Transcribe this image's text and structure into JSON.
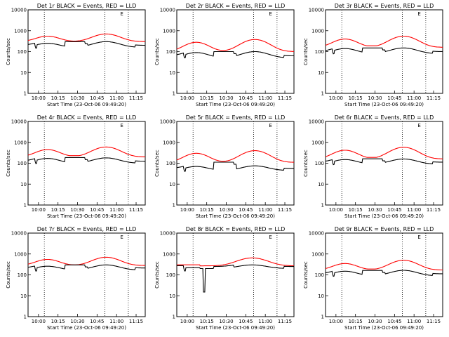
{
  "chart_data": [
    {
      "type": "line",
      "title": "Det 1r BLACK = Events, RED = LLD",
      "xlabel": "Start Time (23-Oct-06 09:49:20)",
      "ylabel": "Counts/sec",
      "yscale": "log",
      "ylim": [
        1,
        10000
      ],
      "xlim": [
        0,
        90
      ],
      "xticks": [
        "10:00",
        "10:15",
        "10:30",
        "10:45",
        "11:00",
        "11:15"
      ],
      "yticks": [
        "1",
        "10",
        "100",
        "1000",
        "10000"
      ],
      "markers": [
        {
          "label": "E",
          "x": 72
        }
      ],
      "vlines": [
        12.5,
        59,
        77
      ],
      "series": [
        {
          "color": "#ff0000",
          "profile": "a",
          "base": 300,
          "peak1": 550,
          "peak2": 700,
          "dip": 300
        },
        {
          "color": "#000000",
          "profile": "a",
          "base": 160,
          "peak1": 250,
          "peak2": 300,
          "dip": 240
        }
      ]
    },
    {
      "type": "line",
      "title": "Det 2r BLACK = Events, RED = LLD",
      "xlabel": "Start Time (23-Oct-06 09:49:20)",
      "ylabel": "Counts/sec",
      "yscale": "log",
      "ylim": [
        1,
        10000
      ],
      "xlim": [
        0,
        90
      ],
      "xticks": [
        "10:00",
        "10:15",
        "10:30",
        "10:45",
        "11:00",
        "11:15"
      ],
      "yticks": [
        "1",
        "10",
        "100",
        "1000",
        "10000"
      ],
      "markers": [
        {
          "label": "E",
          "x": 72
        }
      ],
      "vlines": [
        12.5,
        59,
        77
      ],
      "series": [
        {
          "color": "#ff0000",
          "profile": "a",
          "base": 100,
          "peak1": 280,
          "peak2": 380,
          "dip": 110
        },
        {
          "color": "#000000",
          "profile": "a",
          "base": 50,
          "peak1": 90,
          "peak2": 100,
          "dip": 80
        }
      ]
    },
    {
      "type": "line",
      "title": "Det 3r BLACK = Events, RED = LLD",
      "xlabel": "Start Time (23-Oct-06 09:49:20)",
      "ylabel": "Counts/sec",
      "yscale": "log",
      "ylim": [
        1,
        10000
      ],
      "xlim": [
        0,
        90
      ],
      "xticks": [
        "10:00",
        "10:15",
        "10:30",
        "10:45",
        "11:00",
        "11:15"
      ],
      "yticks": [
        "1",
        "10",
        "100",
        "1000",
        "10000"
      ],
      "markers": [
        {
          "label": "E",
          "x": 72
        }
      ],
      "vlines": [
        12.5,
        59,
        77
      ],
      "series": [
        {
          "color": "#ff0000",
          "profile": "a",
          "base": 160,
          "peak1": 400,
          "peak2": 550,
          "dip": 190
        },
        {
          "color": "#000000",
          "profile": "a",
          "base": 80,
          "peak1": 140,
          "peak2": 150,
          "dip": 120
        }
      ]
    },
    {
      "type": "line",
      "title": "Det 4r BLACK = Events, RED = LLD",
      "xlabel": "Start Time (23-Oct-06 09:49:20)",
      "ylabel": "Counts/sec",
      "yscale": "log",
      "ylim": [
        1,
        10000
      ],
      "xlim": [
        0,
        90
      ],
      "xticks": [
        "10:00",
        "10:15",
        "10:30",
        "10:45",
        "11:00",
        "11:15"
      ],
      "yticks": [
        "1",
        "10",
        "100",
        "1000",
        "10000"
      ],
      "markers": [
        {
          "label": "E",
          "x": 72
        }
      ],
      "vlines": [
        12.5,
        59,
        77
      ],
      "series": [
        {
          "color": "#ff0000",
          "profile": "a",
          "base": 200,
          "peak1": 450,
          "peak2": 600,
          "dip": 230
        },
        {
          "color": "#000000",
          "profile": "a",
          "base": 100,
          "peak1": 170,
          "peak2": 180,
          "dip": 150
        }
      ]
    },
    {
      "type": "line",
      "title": "Det 5r BLACK = Events, RED = LLD",
      "xlabel": "Start Time (23-Oct-06 09:49:20)",
      "ylabel": "Counts/sec",
      "yscale": "log",
      "ylim": [
        1,
        10000
      ],
      "xlim": [
        0,
        90
      ],
      "xticks": [
        "10:00",
        "10:15",
        "10:30",
        "10:45",
        "11:00",
        "11:15"
      ],
      "yticks": [
        "1",
        "10",
        "100",
        "1000",
        "10000"
      ],
      "markers": [
        {
          "label": "E",
          "x": 72
        }
      ],
      "vlines": [
        12.5,
        59,
        77
      ],
      "series": [
        {
          "color": "#ff0000",
          "profile": "a",
          "base": 110,
          "peak1": 300,
          "peak2": 400,
          "dip": 120
        },
        {
          "color": "#000000",
          "profile": "a",
          "base": 45,
          "peak1": 70,
          "peak2": 75,
          "dip": 90
        }
      ]
    },
    {
      "type": "line",
      "title": "Det 6r BLACK = Events, RED = LLD",
      "xlabel": "Start Time (23-Oct-06 09:49:20)",
      "ylabel": "Counts/sec",
      "yscale": "log",
      "ylim": [
        1,
        10000
      ],
      "xlim": [
        0,
        90
      ],
      "xticks": [
        "10:00",
        "10:15",
        "10:30",
        "10:45",
        "11:00",
        "11:15"
      ],
      "yticks": [
        "1",
        "10",
        "100",
        "1000",
        "10000"
      ],
      "markers": [
        {
          "label": "E",
          "x": 72
        }
      ],
      "vlines": [
        12.5,
        59,
        77
      ],
      "series": [
        {
          "color": "#ff0000",
          "profile": "a",
          "base": 160,
          "peak1": 420,
          "peak2": 580,
          "dip": 190
        },
        {
          "color": "#000000",
          "profile": "a",
          "base": 90,
          "peak1": 150,
          "peak2": 160,
          "dip": 130
        }
      ]
    },
    {
      "type": "line",
      "title": "Det 7r BLACK = Events, RED = LLD",
      "xlabel": "Start Time (23-Oct-06 09:49:20)",
      "ylabel": "Counts/sec",
      "yscale": "log",
      "ylim": [
        1,
        10000
      ],
      "xlim": [
        0,
        90
      ],
      "xticks": [
        "10:00",
        "10:15",
        "10:30",
        "10:45",
        "11:00",
        "11:15"
      ],
      "yticks": [
        "1",
        "10",
        "100",
        "1000",
        "10000"
      ],
      "markers": [
        {
          "label": "E",
          "x": 72
        }
      ],
      "vlines": [
        12.5,
        59,
        77
      ],
      "series": [
        {
          "color": "#ff0000",
          "profile": "a",
          "base": 280,
          "peak1": 550,
          "peak2": 700,
          "dip": 290
        },
        {
          "color": "#000000",
          "profile": "a",
          "base": 170,
          "peak1": 260,
          "peak2": 300,
          "dip": 240
        }
      ]
    },
    {
      "type": "line",
      "title": "Det 8r BLACK = Events, RED = LLD",
      "xlabel": "Start Time (23-Oct-06 09:49:20)",
      "ylabel": "Counts/sec",
      "yscale": "log",
      "ylim": [
        1,
        10000
      ],
      "xlim": [
        0,
        90
      ],
      "xticks": [
        "10:00",
        "10:15",
        "10:30",
        "10:45",
        "11:00",
        "11:15"
      ],
      "yticks": [
        "1",
        "10",
        "100",
        "1000",
        "10000"
      ],
      "markers": [
        {
          "label": "E",
          "x": 72
        }
      ],
      "vlines": [
        12.5,
        59,
        77
      ],
      "series": [
        {
          "color": "#ff0000",
          "profile": "b",
          "base": 270,
          "peak1": 400,
          "peak2": 650,
          "dip": 280
        },
        {
          "color": "#000000",
          "profile": "b",
          "base": 200,
          "peak1": 280,
          "peak2": 300,
          "dip": 230
        }
      ]
    },
    {
      "type": "line",
      "title": "Det 9r BLACK = Events, RED = LLD",
      "xlabel": "Start Time (23-Oct-06 09:49:20)",
      "ylabel": "Counts/sec",
      "yscale": "log",
      "ylim": [
        1,
        10000
      ],
      "xlim": [
        0,
        90
      ],
      "xticks": [
        "10:00",
        "10:15",
        "10:30",
        "10:45",
        "11:00",
        "11:15"
      ],
      "yticks": [
        "1",
        "10",
        "100",
        "1000",
        "10000"
      ],
      "markers": [
        {
          "label": "E",
          "x": 72
        }
      ],
      "vlines": [
        12.5,
        59,
        77
      ],
      "series": [
        {
          "color": "#ff0000",
          "profile": "a",
          "base": 170,
          "peak1": 350,
          "peak2": 500,
          "dip": 190
        },
        {
          "color": "#000000",
          "profile": "a",
          "base": 90,
          "peak1": 150,
          "peak2": 165,
          "dip": 130
        }
      ]
    }
  ]
}
